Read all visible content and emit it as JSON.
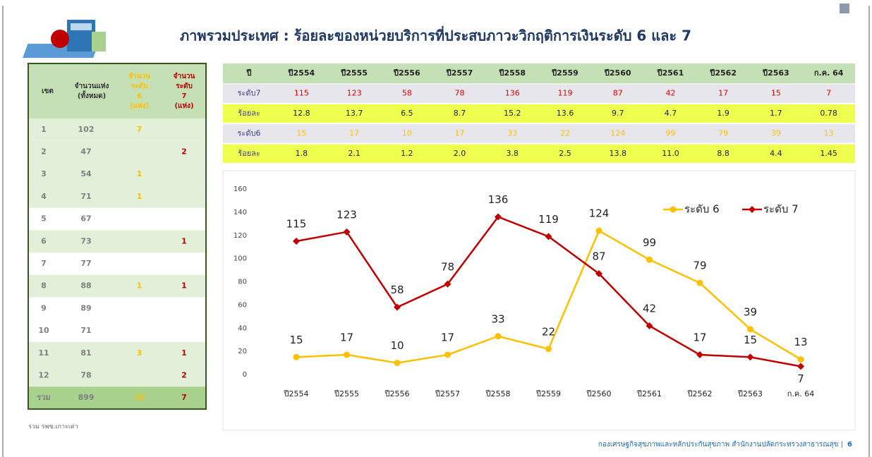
{
  "title": "ภาพรวมประเทศ : ร้อยละของหน่วยบริการที่ประสบภาวะวิกฤติการเงินระดับ 6 และ 7",
  "left_table": {
    "header": [
      "เขต",
      "จำนวนแห่ง (ทั้งหมด)",
      "จำนวน ระดับ 6 (แห่ง)",
      "จำนวน ระดับ 7 (แห่ง)"
    ],
    "rows": [
      [
        "1",
        "102",
        "7",
        null
      ],
      [
        "2",
        "47",
        null,
        "2"
      ],
      [
        "3",
        "54",
        "1",
        null
      ],
      [
        "4",
        "71",
        "1",
        null
      ],
      [
        "5",
        "67",
        null,
        null
      ],
      [
        "6",
        "73",
        null,
        "1"
      ],
      [
        "7",
        "77",
        null,
        null
      ],
      [
        "8",
        "88",
        "1",
        "1"
      ],
      [
        "9",
        "89",
        null,
        null
      ],
      [
        "10",
        "71",
        null,
        null
      ],
      [
        "11",
        "81",
        "3",
        "1"
      ],
      [
        "12",
        "78",
        null,
        "2"
      ],
      [
        "รวม",
        "899",
        "13",
        "7"
      ]
    ]
  },
  "top_table": {
    "header": [
      "ปี",
      "ปี2554",
      "ปี2555",
      "ปี2556",
      "ปี2557",
      "ปี2558",
      "ปี2559",
      "ปี2560",
      "ปี2561",
      "ปี2562",
      "ปี2563",
      "ก.ค. 64"
    ],
    "rows": [
      [
        "ระดับ7",
        "115",
        "123",
        "58",
        "78",
        "136",
        "119",
        "87",
        "42",
        "17",
        "15",
        "7"
      ],
      [
        "ร้อยละ",
        "12.8",
        "13.7",
        "6.5",
        "8.7",
        "15.2",
        "13.6",
        "9.7",
        "4.7",
        "1.9",
        "1.7",
        "0.78"
      ],
      [
        "ระดับ6",
        "15",
        "17",
        "10",
        "17",
        "33",
        "22",
        "124",
        "99",
        "79",
        "39",
        "13"
      ],
      [
        "ร้อยละ",
        "1.8",
        "2.1",
        "1.2",
        "2.0",
        "3.8",
        "2.5",
        "13.8",
        "11.0",
        "8.8",
        "4.4",
        "1.45"
      ]
    ]
  },
  "chart_data": {
    "type": "line",
    "categories": [
      "ปี2554",
      "ปี2555",
      "ปี2556",
      "ปี2557",
      "ปี2558",
      "ปี2559",
      "ปี2560",
      "ปี2561",
      "ปี2562",
      "ปี2563",
      "ก.ค. 64"
    ],
    "series": [
      {
        "name": "ระดับ 6",
        "color": "#ffc000",
        "values": [
          15,
          17,
          10,
          17,
          33,
          22,
          124,
          99,
          79,
          39,
          13
        ]
      },
      {
        "name": "ระดับ 7",
        "color": "#c00000",
        "values": [
          115,
          123,
          58,
          78,
          136,
          119,
          87,
          42,
          17,
          15,
          7
        ]
      }
    ],
    "ylim": [
      0,
      160
    ],
    "yticks": [
      0,
      20,
      40,
      60,
      80,
      100,
      120,
      140,
      160
    ],
    "legend": "upper right",
    "grid": false
  },
  "footnote": "รวม รพช.เกาะเต่า",
  "footer": "กองเศรษฐกิจสุขภาพและหลักประกันสุขภาพ  สำนักงานปลัดกระทรวงสาธารณสุข |",
  "page_number": "6"
}
